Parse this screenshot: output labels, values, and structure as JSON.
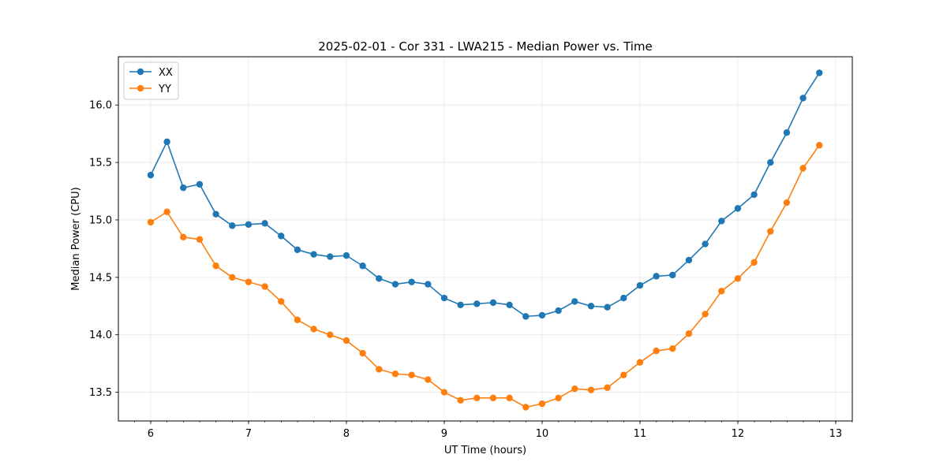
{
  "chart_data": {
    "type": "line",
    "title": "2025-02-01 - Cor 331 - LWA215 - Median Power vs. Time",
    "xlabel": "UT Time (hours)",
    "ylabel": "Median Power (CPU)",
    "xlim": [
      5.67,
      13.17
    ],
    "ylim": [
      13.25,
      16.42
    ],
    "xticks": [
      6,
      7,
      8,
      9,
      10,
      11,
      12,
      13
    ],
    "xtick_labels": [
      "6",
      "7",
      "8",
      "9",
      "10",
      "11",
      "12",
      "13"
    ],
    "yticks": [
      13.5,
      14.0,
      14.5,
      15.0,
      15.5,
      16.0
    ],
    "ytick_labels": [
      "13.5",
      "14.0",
      "14.5",
      "15.0",
      "15.5",
      "16.0"
    ],
    "x_minor_tick_step": 0.1667,
    "grid": true,
    "legend_position": "top-left",
    "x": [
      6.0,
      6.1667,
      6.3333,
      6.5,
      6.6667,
      6.8333,
      7.0,
      7.1667,
      7.3333,
      7.5,
      7.6667,
      7.8333,
      8.0,
      8.1667,
      8.3333,
      8.5,
      8.6667,
      8.8333,
      9.0,
      9.1667,
      9.3333,
      9.5,
      9.6667,
      9.8333,
      10.0,
      10.1667,
      10.3333,
      10.5,
      10.6667,
      10.8333,
      11.0,
      11.1667,
      11.3333,
      11.5,
      11.6667,
      11.8333,
      12.0,
      12.1667,
      12.3333,
      12.5,
      12.6667,
      12.8333
    ],
    "series": [
      {
        "name": "XX",
        "color": "#1f77b4",
        "values": [
          15.39,
          15.68,
          15.28,
          15.31,
          15.05,
          14.95,
          14.96,
          14.97,
          14.86,
          14.74,
          14.7,
          14.68,
          14.69,
          14.6,
          14.49,
          14.44,
          14.46,
          14.44,
          14.32,
          14.26,
          14.27,
          14.28,
          14.26,
          14.16,
          14.17,
          14.21,
          14.29,
          14.25,
          14.24,
          14.32,
          14.43,
          14.51,
          14.52,
          14.65,
          14.79,
          14.99,
          15.1,
          15.22,
          15.5,
          15.76,
          16.06,
          16.28
        ]
      },
      {
        "name": "YY",
        "color": "#ff7f0e",
        "values": [
          14.98,
          15.07,
          14.85,
          14.83,
          14.6,
          14.5,
          14.46,
          14.42,
          14.29,
          14.13,
          14.05,
          14.0,
          13.95,
          13.84,
          13.7,
          13.66,
          13.65,
          13.61,
          13.5,
          13.43,
          13.45,
          13.45,
          13.45,
          13.37,
          13.4,
          13.45,
          13.53,
          13.52,
          13.54,
          13.65,
          13.76,
          13.86,
          13.88,
          14.01,
          14.18,
          14.38,
          14.49,
          14.63,
          14.9,
          15.15,
          15.45,
          15.65
        ]
      }
    ]
  }
}
